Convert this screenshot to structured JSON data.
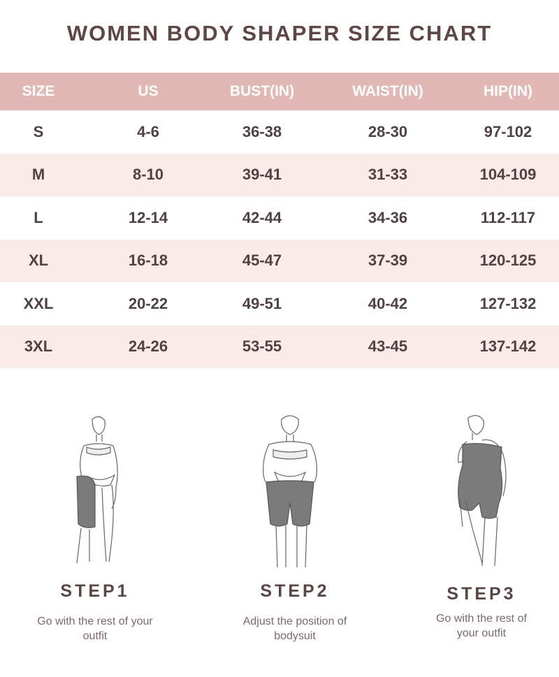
{
  "title": "WOMEN BODY SHAPER SIZE CHART",
  "table": {
    "headers": [
      "SIZE",
      "US",
      "BUST(IN)",
      "WAIST(IN)",
      "HIP(IN)"
    ],
    "rows": [
      [
        "S",
        "4-6",
        "36-38",
        "28-30",
        "97-102"
      ],
      [
        "M",
        "8-10",
        "39-41",
        "31-33",
        "104-109"
      ],
      [
        "L",
        "12-14",
        "42-44",
        "34-36",
        "112-117"
      ],
      [
        "XL",
        "16-18",
        "45-47",
        "37-39",
        "120-125"
      ],
      [
        "XXL",
        "20-22",
        "49-51",
        "40-42",
        "127-132"
      ],
      [
        "3XL",
        "24-26",
        "53-55",
        "43-45",
        "137-142"
      ]
    ]
  },
  "colors": {
    "header": "#e1b8b3",
    "alt_row": "#f8ebe8",
    "text": "#5a4644",
    "garment": "#777777"
  },
  "steps": [
    {
      "label": "STEP1",
      "line1": "Go with the rest of your",
      "line2": "outfit"
    },
    {
      "label": "STEP2",
      "line1": "Adjust the position of",
      "line2": "bodysuit"
    },
    {
      "label": "STEP3",
      "line1": "Go with the rest of",
      "line2": "your outfit"
    }
  ]
}
